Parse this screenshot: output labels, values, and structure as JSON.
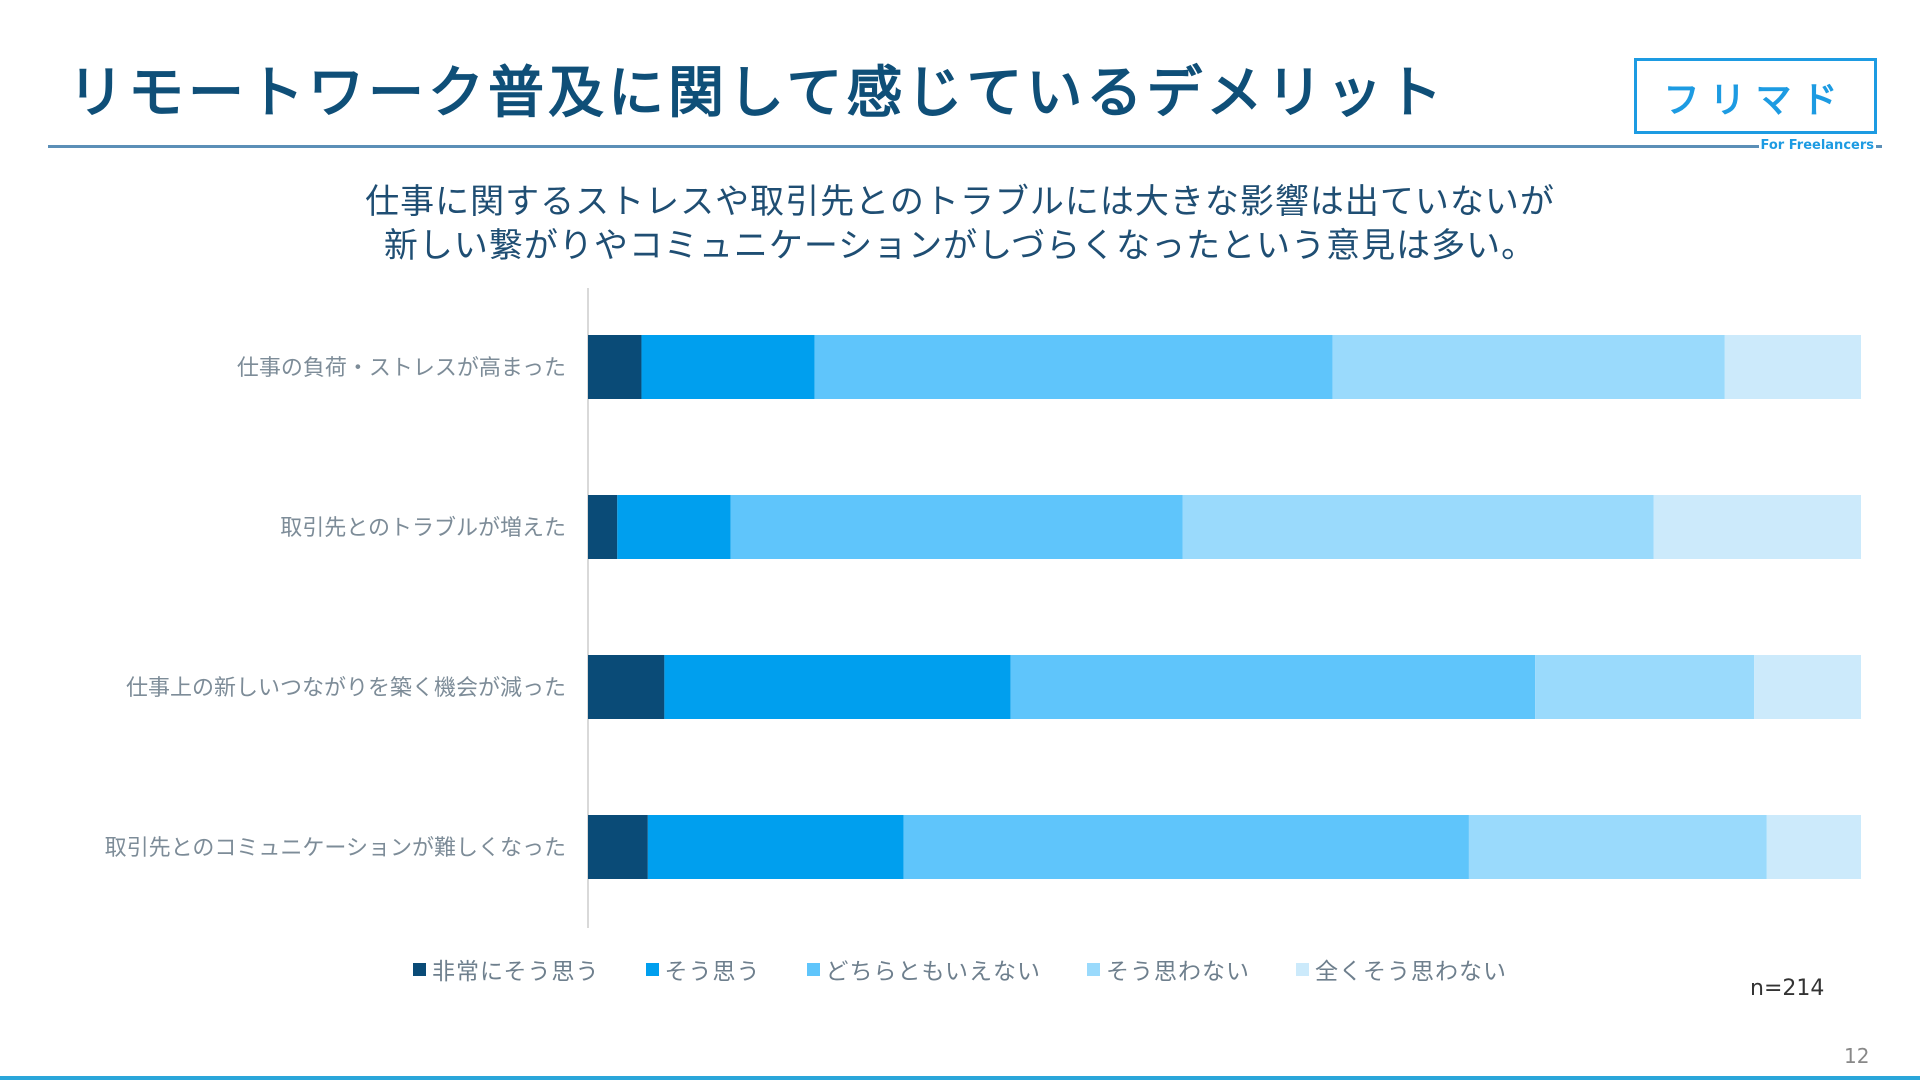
{
  "header": {
    "title": "リモートワーク普及に関して感じているデメリット",
    "logo_text": "フリマド",
    "logo_sub": "For Freelancers"
  },
  "subtitle": {
    "line1": "仕事に関するストレスや取引先とのトラブルには大きな影響は出ていないが",
    "line2": "新しい繋がりやコミュニケーションがしづらくなったという意見は多い。"
  },
  "chart_data": {
    "type": "bar",
    "orientation": "horizontal",
    "stacked": true,
    "normalized_100_percent": true,
    "categories": [
      "仕事の負荷・ストレスが高まった",
      "取引先とのトラブルが増えた",
      "仕事上の新しいつながりを築く機会が減った",
      "取引先とのコミュニケーションが難しくなった"
    ],
    "series": [
      {
        "name": "非常にそう思う",
        "color": "#0a4b77",
        "values": [
          4.2,
          2.3,
          6.0,
          4.7
        ]
      },
      {
        "name": "そう思う",
        "color": "#009fee",
        "values": [
          13.6,
          8.9,
          27.2,
          20.1
        ]
      },
      {
        "name": "どちらともいえない",
        "color": "#5fc5fb",
        "values": [
          40.7,
          35.5,
          41.2,
          44.4
        ]
      },
      {
        "name": "そう思わない",
        "color": "#9adafc",
        "values": [
          30.8,
          37.0,
          17.2,
          23.4
        ]
      },
      {
        "name": "全くそう思わない",
        "color": "#cceafb",
        "values": [
          10.7,
          16.3,
          8.4,
          7.4
        ]
      }
    ],
    "xlim": [
      0,
      100
    ],
    "grid": false,
    "legend_position": "bottom"
  },
  "footer": {
    "n_label": "n=214",
    "page_number": "12"
  }
}
